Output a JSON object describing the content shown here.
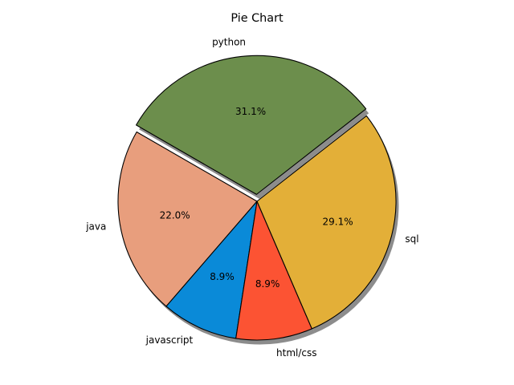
{
  "chart_data": {
    "type": "pie",
    "title": "Pie Chart",
    "start_angle_deg": 150,
    "direction": "counterclockwise",
    "shadow": true,
    "exploded": [
      "python"
    ],
    "slices": [
      {
        "label": "java",
        "value": 22.0,
        "pct_label": "22.0%",
        "color": "#e89e7d",
        "explode": 0
      },
      {
        "label": "javascript",
        "value": 8.9,
        "pct_label": "8.9%",
        "color": "#0a8ad8",
        "explode": 0
      },
      {
        "label": "html/css",
        "value": 8.9,
        "pct_label": "8.9%",
        "color": "#fc5333",
        "explode": 0
      },
      {
        "label": "sql",
        "value": 29.1,
        "pct_label": "29.1%",
        "color": "#e3af38",
        "explode": 0
      },
      {
        "label": "python",
        "value": 31.1,
        "pct_label": "31.1%",
        "color": "#6c8e4c",
        "explode": 0.05
      }
    ]
  }
}
